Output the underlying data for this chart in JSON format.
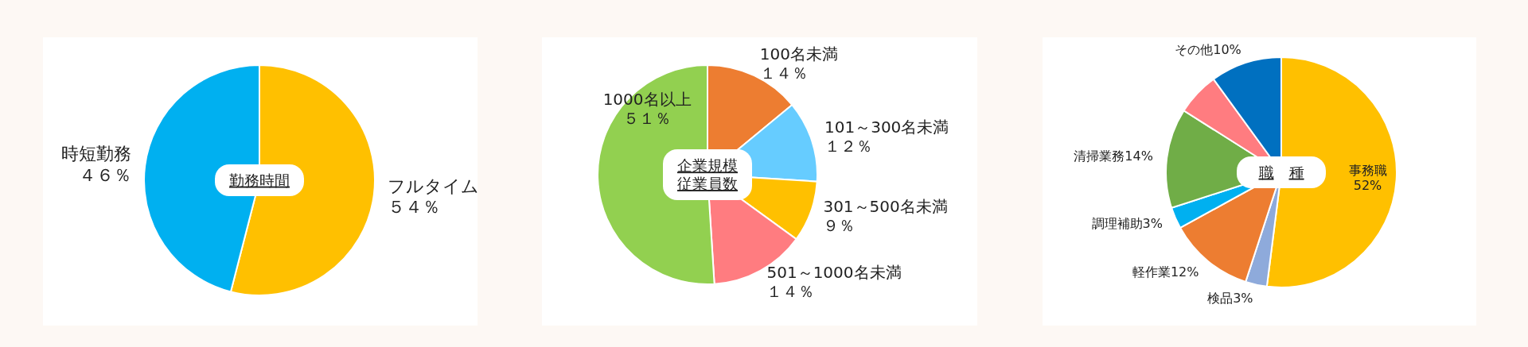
{
  "chart_data": [
    {
      "type": "pie",
      "title": "勤務時間",
      "categories": [
        "フルタイム",
        "時短勤務"
      ],
      "values": [
        54,
        46
      ],
      "colors": [
        "#ffc000",
        "#00b0f0"
      ],
      "value_labels": [
        "５４％",
        "４６％"
      ]
    },
    {
      "type": "pie",
      "title": "企業規模従業員数",
      "categories": [
        "100名未満",
        "101～300名未満",
        "301～500名未満",
        "501～1000名未満",
        "1000名以上"
      ],
      "values": [
        14,
        12,
        9,
        14,
        51
      ],
      "colors": [
        "#ed7d31",
        "#66ccff",
        "#ffc000",
        "#ff7c80",
        "#92d050"
      ],
      "value_labels": [
        "１４％",
        "１２％",
        "９％",
        "１４％",
        "５１％"
      ]
    },
    {
      "type": "pie",
      "title": "職　種",
      "categories": [
        "事務職",
        "検品",
        "軽作業",
        "調理補助",
        "清掃業務",
        null,
        "その他"
      ],
      "values": [
        52,
        3,
        12,
        3,
        14,
        6,
        10
      ],
      "colors": [
        "#ffc000",
        "#8eaadb",
        "#ed7d31",
        "#00b0f0",
        "#70ad47",
        "#ff7c80",
        "#0070c0"
      ],
      "value_labels": [
        "52%",
        "3%",
        "12%",
        "3%",
        "14%",
        null,
        "10%"
      ]
    }
  ]
}
